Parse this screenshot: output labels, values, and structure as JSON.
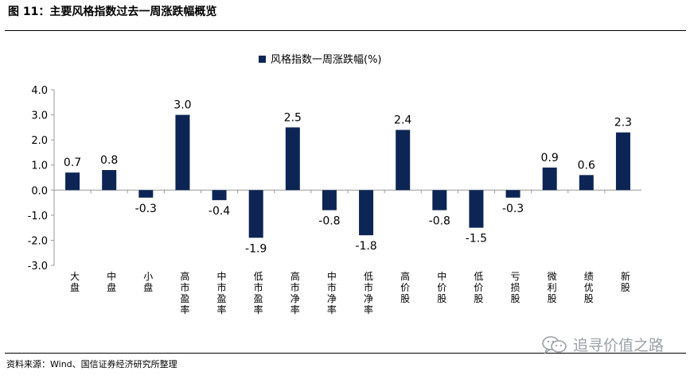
{
  "header": {
    "title": "图 11：主要风格指数过去一周涨跌幅概览"
  },
  "footer": {
    "source": "资料来源：Wind、国信证券经济研究所整理",
    "watermark_text": "追寻价值之路",
    "watermark_icon": "wechat-icon"
  },
  "colors": {
    "bar": "#0c2555",
    "axis": "#999999",
    "text": "#000000"
  },
  "chart_data": {
    "type": "bar",
    "title": "",
    "xlabel": "",
    "ylabel": "",
    "ylim": [
      -3.0,
      4.0
    ],
    "yticks": [
      "4.0",
      "3.0",
      "2.0",
      "1.0",
      "0.0",
      "-1.0",
      "-2.0",
      "-3.0"
    ],
    "grid": false,
    "legend_position": "top-center",
    "categories": [
      "大盘",
      "中盘",
      "小盘",
      "高市盈率",
      "中市盈率",
      "低市盈率",
      "高市净率",
      "中市净率",
      "低市净率",
      "高价股",
      "中价股",
      "低价股",
      "亏损股",
      "微利股",
      "绩优股",
      "新股"
    ],
    "series": [
      {
        "name": "风格指数一周涨跌幅(%)",
        "values": [
          0.7,
          0.8,
          -0.3,
          3.0,
          -0.4,
          -1.9,
          2.5,
          -0.8,
          -1.8,
          2.4,
          -0.8,
          -1.5,
          -0.3,
          0.9,
          0.6,
          2.3
        ],
        "data_labels": [
          "0.7",
          "0.8",
          "-0.3",
          "3.0",
          "-0.4",
          "-1.9",
          "2.5",
          "-0.8",
          "-1.8",
          "2.4",
          "-0.8",
          "-1.5",
          "-0.3",
          "0.9",
          "0.6",
          "2.3"
        ]
      }
    ]
  }
}
